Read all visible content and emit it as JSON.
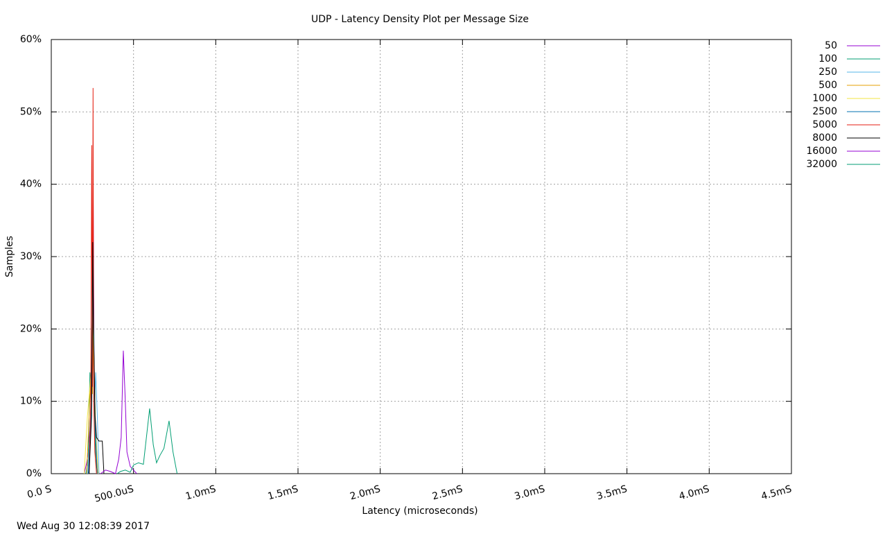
{
  "chart_data": {
    "type": "line",
    "title": "UDP - Latency Density Plot per Message Size",
    "x_label": "Latency (microseconds)",
    "y_label": "Samples",
    "footer": "Wed Aug 30 12:08:39 2017",
    "grid": true,
    "legend": "outside-right",
    "xlim": [
      0,
      4500
    ],
    "xticks": [
      {
        "value": 0,
        "label": "0.0 S"
      },
      {
        "value": 500,
        "label": "500.0uS"
      },
      {
        "value": 1000,
        "label": "1.0mS"
      },
      {
        "value": 1500,
        "label": "1.5mS"
      },
      {
        "value": 2000,
        "label": "2.0mS"
      },
      {
        "value": 2500,
        "label": "2.5mS"
      },
      {
        "value": 3000,
        "label": "3.0mS"
      },
      {
        "value": 3500,
        "label": "3.5mS"
      },
      {
        "value": 4000,
        "label": "4.0mS"
      },
      {
        "value": 4500,
        "label": "4.5mS"
      }
    ],
    "ylim": [
      0,
      60
    ],
    "yticks": [
      {
        "value": 0,
        "label": "0%"
      },
      {
        "value": 10,
        "label": "10%"
      },
      {
        "value": 20,
        "label": "20%"
      },
      {
        "value": 30,
        "label": "30%"
      },
      {
        "value": 40,
        "label": "40%"
      },
      {
        "value": 50,
        "label": "50%"
      },
      {
        "value": 60,
        "label": "60%"
      }
    ],
    "series": [
      {
        "name": "50",
        "color": "#9400d3",
        "x": [
          200,
          215,
          225,
          235,
          245,
          250,
          255,
          260,
          265,
          270,
          280,
          290
        ],
        "values": [
          0,
          1.5,
          3,
          6,
          12,
          20,
          37.8,
          15,
          5,
          2,
          0.5,
          0
        ]
      },
      {
        "name": "100",
        "color": "#009e73",
        "x": [
          210,
          225,
          235,
          245,
          250,
          255,
          260,
          265,
          270,
          280
        ],
        "values": [
          0,
          2,
          14,
          10,
          15,
          25,
          12,
          6,
          2,
          0
        ]
      },
      {
        "name": "250",
        "color": "#56b4e9",
        "x": [
          220,
          235,
          245,
          255,
          260,
          265,
          270,
          280,
          290
        ],
        "values": [
          0,
          5,
          12,
          20,
          14,
          10,
          14,
          8,
          0
        ]
      },
      {
        "name": "500",
        "color": "#e69f00",
        "x": [
          215,
          230,
          240,
          250,
          255,
          260,
          270,
          280
        ],
        "values": [
          0,
          8,
          13,
          11,
          22,
          16,
          5,
          0
        ]
      },
      {
        "name": "1000",
        "color": "#f0e442",
        "x": [
          200,
          220,
          235,
          245,
          250,
          255,
          262,
          270,
          285
        ],
        "values": [
          0,
          8,
          12,
          15,
          23,
          16,
          12,
          6,
          0
        ]
      },
      {
        "name": "2500",
        "color": "#0072b2",
        "x": [
          225,
          240,
          248,
          255,
          260,
          268,
          280
        ],
        "values": [
          0,
          6,
          20,
          32,
          15,
          6,
          0
        ]
      },
      {
        "name": "5000",
        "color": "#e51e10",
        "x": [
          230,
          240,
          246,
          250,
          254,
          258,
          265,
          275
        ],
        "values": [
          0,
          10,
          45.4,
          12,
          53.3,
          10,
          3,
          0
        ]
      },
      {
        "name": "8000",
        "color": "#000000",
        "x": [
          230,
          245,
          252,
          256,
          260,
          266,
          275,
          290,
          310,
          320
        ],
        "values": [
          0,
          8,
          32,
          20,
          16,
          8,
          5,
          4.5,
          4.5,
          0
        ]
      },
      {
        "name": "16000",
        "color": "#9400d3",
        "x": [
          300,
          330,
          360,
          390,
          410,
          425,
          438,
          450,
          460,
          480,
          500,
          520
        ],
        "values": [
          0,
          0.5,
          0.3,
          0,
          2,
          5,
          17,
          10,
          3,
          1,
          0.5,
          0
        ]
      },
      {
        "name": "32000",
        "color": "#009e73",
        "x": [
          400,
          420,
          450,
          480,
          500,
          530,
          560,
          598,
          620,
          640,
          660,
          685,
          716,
          740,
          765
        ],
        "values": [
          0,
          0.3,
          0.5,
          0.2,
          1.2,
          1.5,
          1.3,
          9,
          4,
          1.5,
          2.5,
          3.5,
          7.3,
          3,
          0
        ]
      }
    ]
  }
}
